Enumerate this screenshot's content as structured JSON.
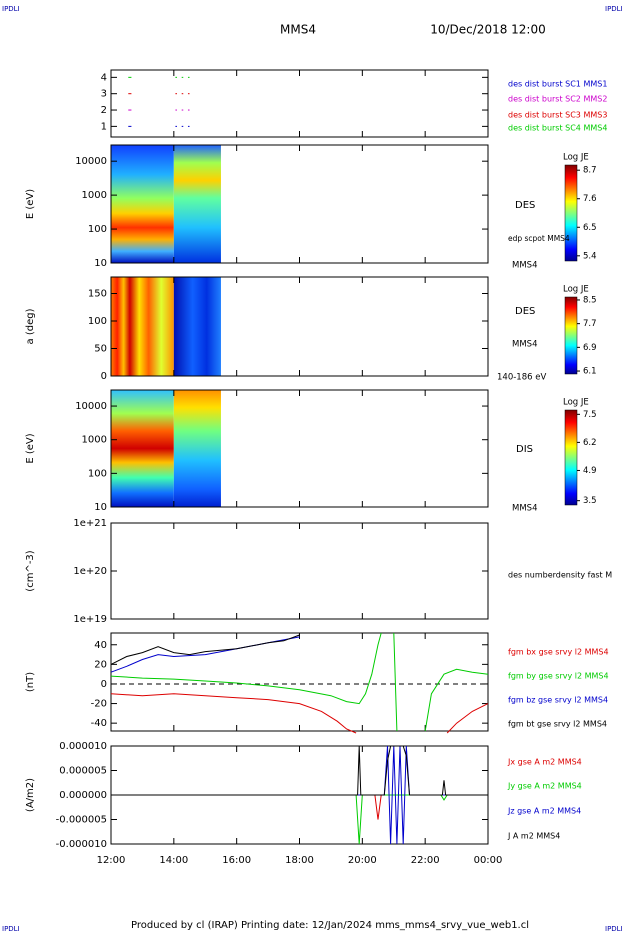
{
  "header": {
    "logo_left": "IPDLI",
    "logo_right": "IPDLI",
    "title": "MMS4",
    "date": "10/Dec/2018 12:00"
  },
  "footer": {
    "text": "Produced by cl (IRAP)   Printing date: 12/Jan/2024   mms_mms4_srvy_vue_web1.cl",
    "logo_left": "IPDLI",
    "logo_right": "IPDLI"
  },
  "chart_data": [
    {
      "type": "timeline",
      "ylim": [
        0.35,
        4.45
      ],
      "yticks": [
        1,
        2,
        3,
        4
      ],
      "series": [
        {
          "name": "des dist burst SC1 MMS1",
          "color": "#0000cc",
          "y": 1,
          "intervals": [
            [
              12.55,
              12.65
            ],
            [
              14.05,
              14.1
            ],
            [
              14.25,
              14.3
            ],
            [
              14.45,
              14.5
            ]
          ]
        },
        {
          "name": "des dist burst SC2 MMS2",
          "color": "#cc00cc",
          "y": 2,
          "intervals": [
            [
              12.55,
              12.65
            ],
            [
              14.05,
              14.1
            ],
            [
              14.25,
              14.3
            ],
            [
              14.45,
              14.5
            ]
          ]
        },
        {
          "name": "des dist burst SC3 MMS3",
          "color": "#dd0000",
          "y": 3,
          "intervals": [
            [
              12.55,
              12.65
            ],
            [
              14.05,
              14.1
            ],
            [
              14.25,
              14.3
            ],
            [
              14.45,
              14.5
            ]
          ]
        },
        {
          "name": "des dist burst SC4 MMS4",
          "color": "#00cc00",
          "y": 4,
          "intervals": [
            [
              12.55,
              12.65
            ],
            [
              14.05,
              14.1
            ],
            [
              14.25,
              14.3
            ],
            [
              14.45,
              14.5
            ]
          ]
        }
      ]
    },
    {
      "type": "spectrogram",
      "ylabel": "E (eV)",
      "log": true,
      "ylim": [
        10,
        30000
      ],
      "yticks": [
        10,
        100,
        1000,
        10000
      ],
      "time_range": [
        12,
        15.5
      ],
      "labels": [
        "DES",
        "edp scpot MMS4",
        "MMS4"
      ],
      "colorbar": {
        "label": "Log JE",
        "clim": [
          5.2,
          8.9
        ],
        "ticks": [
          5.4,
          6.5,
          7.6,
          8.7
        ]
      }
    },
    {
      "type": "spectrogram",
      "ylabel": "a (deg)",
      "ylim": [
        0,
        180
      ],
      "yticks": [
        0,
        50,
        100,
        150
      ],
      "time_range": [
        12,
        15.5
      ],
      "labels": [
        "DES",
        "MMS4",
        "140-186 eV"
      ],
      "colorbar": {
        "label": "Log JE",
        "clim": [
          6.0,
          8.6
        ],
        "ticks": [
          6.1,
          6.9,
          7.7,
          8.5
        ]
      }
    },
    {
      "type": "spectrogram",
      "ylabel": "E (eV)",
      "log": true,
      "ylim": [
        10,
        30000
      ],
      "yticks": [
        10,
        100,
        1000,
        10000
      ],
      "time_range": [
        12,
        15.5
      ],
      "labels": [
        "DIS",
        "MMS4"
      ],
      "colorbar": {
        "label": "Log JE",
        "clim": [
          3.3,
          7.7
        ],
        "ticks": [
          3.5,
          4.9,
          6.2,
          7.5
        ]
      }
    },
    {
      "type": "line",
      "ylabel": "(cm^-3)",
      "log": true,
      "ylim": [
        1e+19,
        1e+21
      ],
      "yticks": [
        {
          "value": 1e+19,
          "label": "1e+19"
        },
        {
          "value": 1e+20,
          "label": "1e+20"
        },
        {
          "value": 1e+21,
          "label": "1e+21"
        }
      ],
      "series": [
        {
          "name": "des numberdensity fast M",
          "color": "#000000",
          "x": [],
          "values": []
        }
      ]
    },
    {
      "type": "line",
      "ylabel": "(nT)",
      "ylim": [
        -48,
        52
      ],
      "yticks": [
        -40,
        -20,
        0,
        20,
        40
      ],
      "reference_line": 0,
      "series": [
        {
          "name": "fgm bx gse srvy l2 MMS4",
          "color": "#dd0000",
          "x": [
            12,
            13,
            14,
            15,
            16,
            17,
            18,
            18.7,
            19.2,
            19.5,
            19.8,
            null,
            22.7,
            23,
            23.5,
            24
          ],
          "values": [
            -10,
            -12,
            -10,
            -12,
            -14,
            -16,
            -20,
            -28,
            -38,
            -46,
            -50,
            null,
            -50,
            -40,
            -28,
            -20
          ]
        },
        {
          "name": "fgm by gse srvy l2 MMS4",
          "color": "#00cc00",
          "x": [
            12,
            13,
            14,
            15,
            16,
            17,
            18,
            19,
            19.5,
            19.9,
            20.1,
            20.3,
            20.5,
            20.6,
            null,
            21.0,
            21.1,
            null,
            22.0,
            22.2,
            22.6,
            23,
            23.5,
            24
          ],
          "values": [
            8,
            6,
            5,
            3,
            1,
            -2,
            -6,
            -12,
            -18,
            -20,
            -10,
            10,
            40,
            52,
            null,
            52,
            -48,
            null,
            -48,
            -10,
            10,
            15,
            12,
            10
          ]
        },
        {
          "name": "fgm bz gse srvy l2 MMS4",
          "color": "#0000cc",
          "x": [
            12,
            12.5,
            13,
            13.5,
            14,
            15,
            16,
            17,
            18
          ],
          "values": [
            12,
            18,
            25,
            30,
            28,
            30,
            36,
            42,
            48
          ]
        },
        {
          "name": "fgm bt gse srvy l2 MMS4",
          "color": "#000000",
          "x": [
            12,
            12.5,
            13,
            13.5,
            14,
            14.5,
            15,
            16,
            17,
            17.5,
            18
          ],
          "values": [
            20,
            28,
            32,
            38,
            32,
            30,
            33,
            36,
            42,
            44,
            50
          ]
        }
      ]
    },
    {
      "type": "line",
      "ylabel": "(A/m2)",
      "ylim": [
        -1e-05,
        1e-05
      ],
      "yticks": [
        {
          "value": -1e-05,
          "label": "-0.000010"
        },
        {
          "value": -5e-06,
          "label": "-0.000005"
        },
        {
          "value": 0,
          "label": "0.000000"
        },
        {
          "value": 5e-06,
          "label": "0.000005"
        },
        {
          "value": 1e-05,
          "label": "0.000010"
        }
      ],
      "xlim": [
        12,
        24
      ],
      "xticks": [
        {
          "value": 12,
          "label": "12:00"
        },
        {
          "value": 14,
          "label": "14:00"
        },
        {
          "value": 16,
          "label": "16:00"
        },
        {
          "value": 18,
          "label": "18:00"
        },
        {
          "value": 20,
          "label": "20:00"
        },
        {
          "value": 22,
          "label": "22:00"
        },
        {
          "value": 24,
          "label": "00:00"
        }
      ],
      "series": [
        {
          "name": "Jx gse A m2 MMS4",
          "color": "#dd0000",
          "x": [
            12,
            16,
            19.8,
            20.4,
            20.5,
            20.6,
            21.5,
            22,
            24
          ],
          "values": [
            0,
            0,
            0,
            0,
            -5e-06,
            0,
            0,
            0,
            0
          ]
        },
        {
          "name": "Jy gse A m2 MMS4",
          "color": "#00cc00",
          "x": [
            12,
            16,
            19.8,
            19.9,
            20.0,
            21.5,
            22.5,
            22.6,
            22.7,
            24
          ],
          "values": [
            0,
            0,
            0,
            -1e-05,
            0,
            0,
            0,
            -1e-06,
            0,
            0
          ]
        },
        {
          "name": "Jz gse A m2 MMS4",
          "color": "#0000cc",
          "x": [
            12,
            16,
            20.7,
            20.8,
            20.9,
            21.0,
            21.1,
            21.2,
            21.3,
            21.4,
            21.5,
            22,
            24
          ],
          "values": [
            0,
            0,
            0,
            1e-05,
            -1e-05,
            1e-05,
            -1e-05,
            1e-05,
            -1e-05,
            1e-05,
            0,
            0,
            0
          ]
        },
        {
          "name": "J A m2 MMS4",
          "color": "#000000",
          "x": [
            12,
            16,
            19.85,
            19.9,
            19.95,
            20.7,
            20.8,
            20.9,
            21.3,
            21.4,
            21.5,
            22.55,
            22.6,
            22.65,
            24
          ],
          "values": [
            0,
            0,
            0,
            1e-05,
            0,
            0,
            7e-06,
            1e-05,
            1e-05,
            8e-06,
            0,
            0,
            3e-06,
            0,
            0
          ]
        }
      ]
    }
  ]
}
